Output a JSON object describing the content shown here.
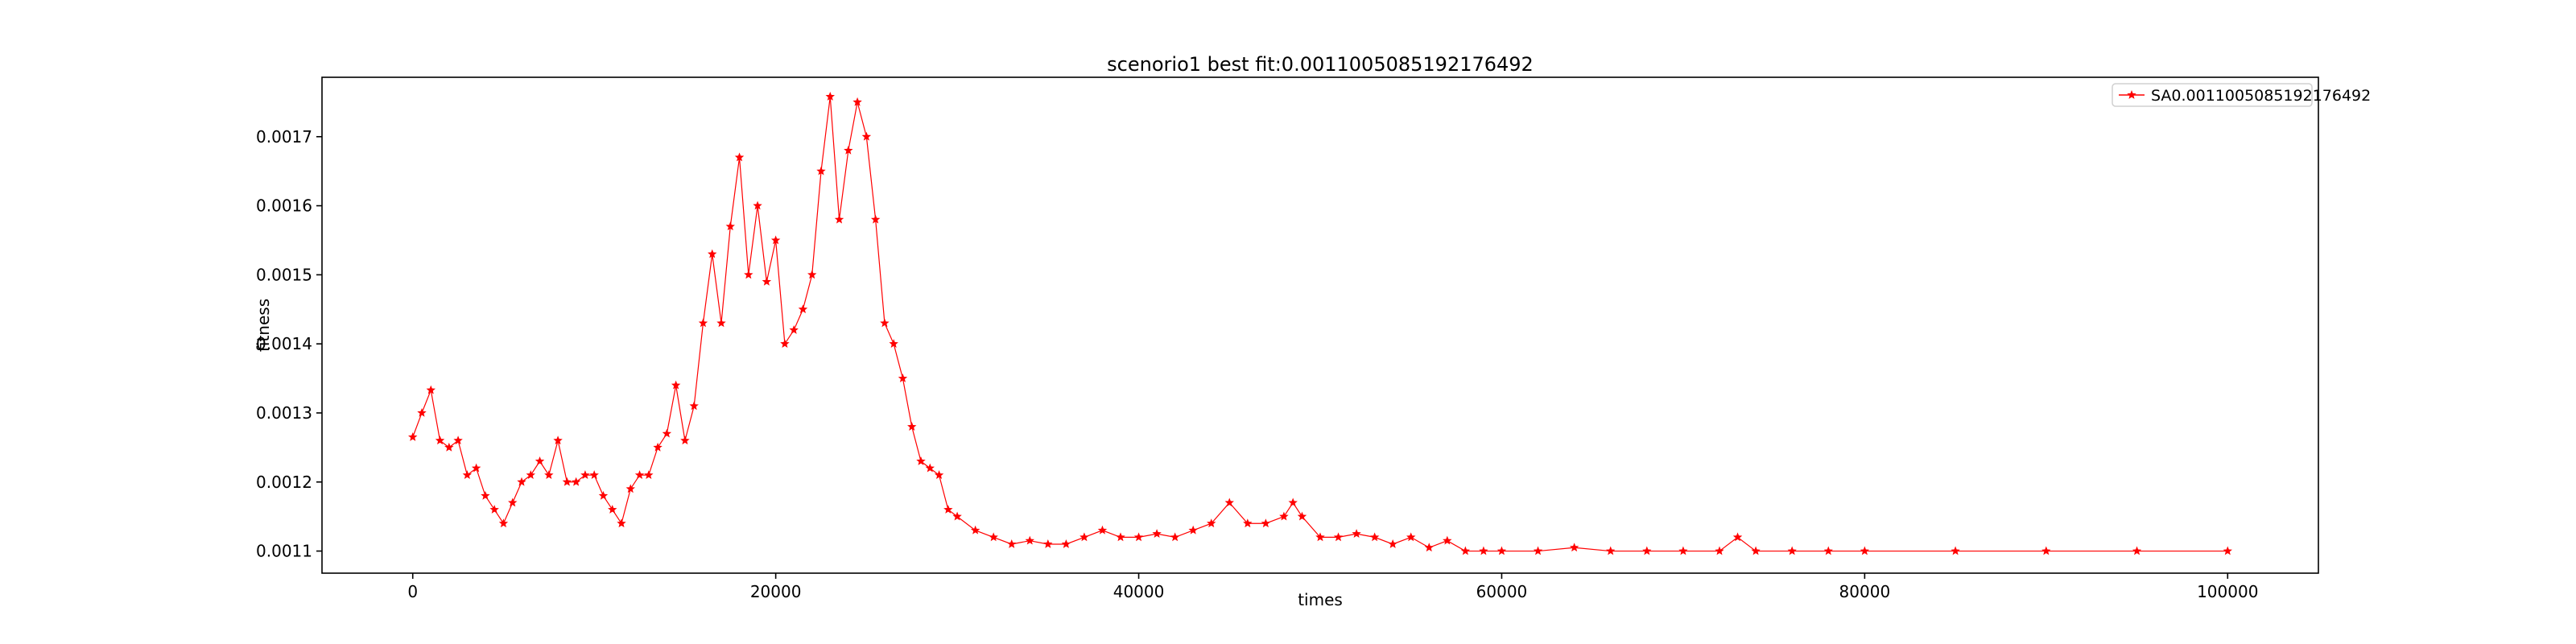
{
  "chart_data": {
    "type": "line",
    "title": "scenorio1 best fit:0.0011005085192176492",
    "xlabel": "times",
    "ylabel": "fitness",
    "xlim": [
      -5000,
      105000
    ],
    "ylim": [
      0.001068,
      0.001786
    ],
    "xticks": [
      0,
      20000,
      40000,
      60000,
      80000,
      100000
    ],
    "xtick_labels": [
      "0",
      "20000",
      "40000",
      "60000",
      "80000",
      "100000"
    ],
    "yticks": [
      0.0011,
      0.0012,
      0.0013,
      0.0014,
      0.0015,
      0.0016,
      0.0017
    ],
    "ytick_labels": [
      "0.0011",
      "0.0012",
      "0.0013",
      "0.0014",
      "0.0015",
      "0.0016",
      "0.0017"
    ],
    "grid": false,
    "legend_position": "top-right",
    "series": [
      {
        "name": "SA0.0011005085192176492",
        "color": "#ff0000",
        "marker": "star",
        "x": [
          0,
          500,
          1000,
          1500,
          2000,
          2500,
          3000,
          3500,
          4000,
          4500,
          5000,
          5500,
          6000,
          6500,
          7000,
          7500,
          8000,
          8500,
          9000,
          9500,
          10000,
          10500,
          11000,
          11500,
          12000,
          12500,
          13000,
          13500,
          14000,
          14500,
          15000,
          15500,
          16000,
          16500,
          17000,
          17500,
          18000,
          18500,
          19000,
          19500,
          20000,
          20500,
          21000,
          21500,
          22000,
          22500,
          23000,
          23500,
          24000,
          24500,
          25000,
          25500,
          26000,
          26500,
          27000,
          27500,
          28000,
          28500,
          29000,
          29500,
          30000,
          31000,
          32000,
          33000,
          34000,
          35000,
          36000,
          37000,
          38000,
          39000,
          40000,
          41000,
          42000,
          43000,
          44000,
          45000,
          46000,
          47000,
          48000,
          48500,
          49000,
          50000,
          51000,
          52000,
          53000,
          54000,
          55000,
          56000,
          57000,
          58000,
          59000,
          60000,
          62000,
          64000,
          66000,
          68000,
          70000,
          72000,
          73000,
          74000,
          76000,
          78000,
          80000,
          85000,
          90000,
          95000,
          100000
        ],
        "y": [
          0.001265,
          0.0013,
          0.001333,
          0.00126,
          0.00125,
          0.00126,
          0.00121,
          0.00122,
          0.00118,
          0.00116,
          0.00114,
          0.00117,
          0.0012,
          0.00121,
          0.00123,
          0.00121,
          0.00126,
          0.0012,
          0.0012,
          0.00121,
          0.00121,
          0.00118,
          0.00116,
          0.00114,
          0.00119,
          0.00121,
          0.00121,
          0.00125,
          0.00127,
          0.00134,
          0.00126,
          0.00131,
          0.00143,
          0.00153,
          0.00143,
          0.00157,
          0.00167,
          0.0015,
          0.0016,
          0.00149,
          0.00155,
          0.0014,
          0.00142,
          0.00145,
          0.0015,
          0.00165,
          0.001758,
          0.00158,
          0.00168,
          0.00175,
          0.0017,
          0.00158,
          0.00143,
          0.0014,
          0.00135,
          0.00128,
          0.00123,
          0.00122,
          0.00121,
          0.00116,
          0.00115,
          0.00113,
          0.00112,
          0.00111,
          0.001115,
          0.00111,
          0.00111,
          0.00112,
          0.00113,
          0.00112,
          0.00112,
          0.001125,
          0.00112,
          0.00113,
          0.00114,
          0.00117,
          0.00114,
          0.00114,
          0.00115,
          0.00117,
          0.00115,
          0.00112,
          0.00112,
          0.001125,
          0.00112,
          0.00111,
          0.00112,
          0.001105,
          0.001115,
          0.0011,
          0.0011,
          0.0011,
          0.0011,
          0.001105,
          0.0011,
          0.0011,
          0.0011,
          0.0011,
          0.00112,
          0.0011,
          0.0011,
          0.0011,
          0.0011,
          0.0011,
          0.0011,
          0.0011,
          0.0011
        ]
      }
    ]
  }
}
